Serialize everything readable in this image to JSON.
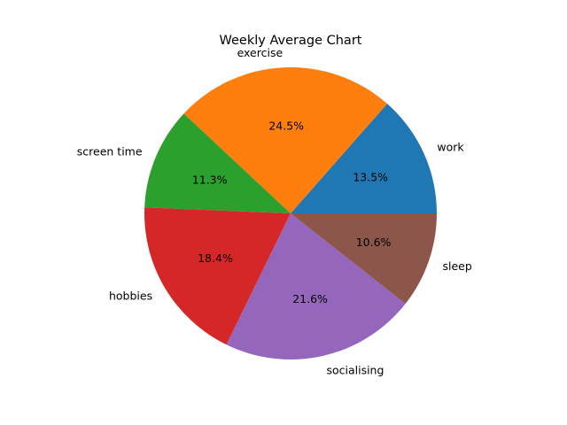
{
  "chart_data": {
    "type": "pie",
    "title": "Weekly Average Chart",
    "start_angle_deg": 0,
    "direction": "counterclockwise",
    "slices": [
      {
        "label": "work",
        "percent": 13.5,
        "percent_label": "13.5%",
        "color": "#1f77b4"
      },
      {
        "label": "exercise",
        "percent": 24.5,
        "percent_label": "24.5%",
        "color": "#ff7f0e"
      },
      {
        "label": "screen time",
        "percent": 11.3,
        "percent_label": "11.3%",
        "color": "#2ca02c"
      },
      {
        "label": "hobbies",
        "percent": 18.4,
        "percent_label": "18.4%",
        "color": "#d62728"
      },
      {
        "label": "socialising",
        "percent": 21.6,
        "percent_label": "21.6%",
        "color": "#9467bd"
      },
      {
        "label": "sleep",
        "percent": 10.6,
        "percent_label": "10.6%",
        "color": "#8c564b"
      }
    ]
  }
}
